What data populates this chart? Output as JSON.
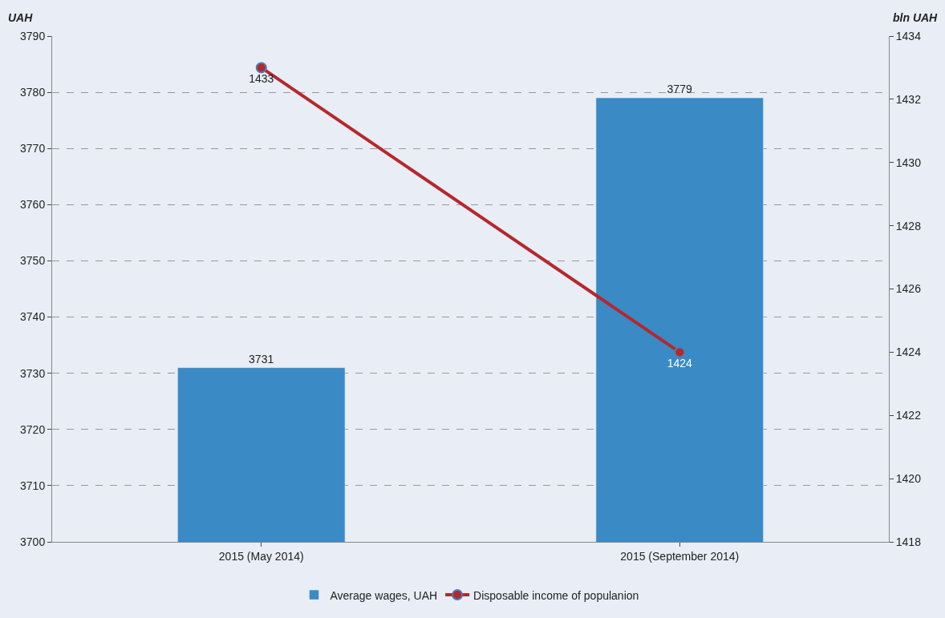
{
  "chart_data": {
    "type": "bar",
    "ylabel": "UAH",
    "y2label": "bln UAH",
    "categories": [
      "2015 (May 2014)",
      "2015 (September 2014)"
    ],
    "series": [
      {
        "name": "Average wages, UAH",
        "color": "#3a8ac6",
        "values": [
          3731,
          3779
        ]
      },
      {
        "name": "Disposable income of populanion",
        "type": "line",
        "axis": "y2",
        "color": "#b5282c",
        "values": [
          1433,
          1424
        ]
      }
    ],
    "ylim": [
      3700,
      3790
    ],
    "yticks": [
      3700,
      3710,
      3720,
      3730,
      3740,
      3750,
      3760,
      3770,
      3780,
      3790
    ],
    "y2lim": [
      1418,
      1434
    ],
    "y2ticks": [
      1418,
      1420,
      1422,
      1424,
      1426,
      1428,
      1430,
      1432,
      1434
    ],
    "data_labels": true,
    "grid": "y",
    "legend": "bottom",
    "marker": "circle",
    "line_style": "solid"
  }
}
